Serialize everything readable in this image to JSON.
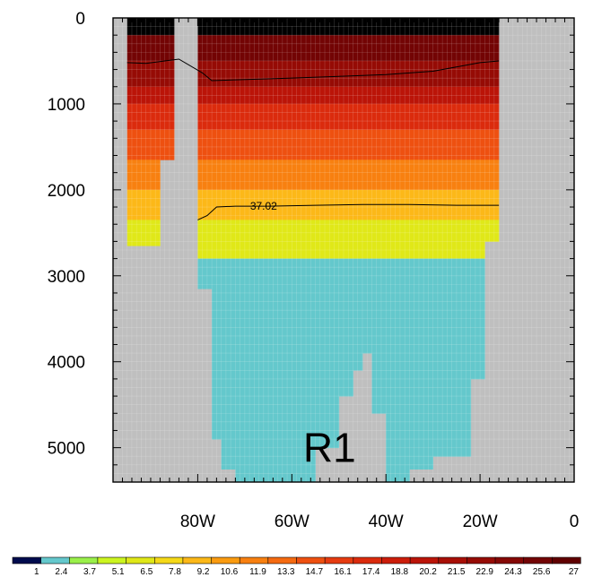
{
  "chart_data": {
    "type": "heatmap",
    "title": "",
    "xlabel": "",
    "ylabel": "",
    "xlim": [
      -98,
      0
    ],
    "ylim": [
      5400,
      0
    ],
    "y_reversed": true,
    "x_ticks": [
      {
        "value": -80,
        "label": "80W"
      },
      {
        "value": -60,
        "label": "60W"
      },
      {
        "value": -40,
        "label": "40W"
      },
      {
        "value": -20,
        "label": "20W"
      },
      {
        "value": 0,
        "label": "0"
      }
    ],
    "y_ticks": [
      {
        "value": 0,
        "label": "0"
      },
      {
        "value": 1000,
        "label": "1000"
      },
      {
        "value": 2000,
        "label": "2000"
      },
      {
        "value": 3000,
        "label": "3000"
      },
      {
        "value": 4000,
        "label": "4000"
      },
      {
        "value": 5000,
        "label": "5000"
      }
    ],
    "land_color": "#bfbfbf",
    "band_edges": [
      0,
      200,
      500,
      800,
      1000,
      1300,
      1650,
      2000,
      2350,
      2800,
      3150,
      5400
    ],
    "band_color_index": [
      20,
      18,
      16,
      14,
      12,
      10,
      8,
      6,
      4,
      1,
      1
    ],
    "ocean_columns": [
      {
        "lon": [
          -95,
          -88
        ],
        "bottom": 2650
      },
      {
        "lon": [
          -88,
          -85
        ],
        "bottom": 1650
      },
      {
        "lon": [
          -80,
          -77
        ],
        "bottom": 3150
      },
      {
        "lon": [
          -77,
          -75
        ],
        "bottom": 4900
      },
      {
        "lon": [
          -75,
          -72
        ],
        "bottom": 5250
      },
      {
        "lon": [
          -72,
          -68
        ],
        "bottom": 5400
      },
      {
        "lon": [
          -68,
          -55
        ],
        "bottom": 5400
      },
      {
        "lon": [
          -55,
          -50
        ],
        "bottom": 5000
      },
      {
        "lon": [
          -50,
          -47
        ],
        "bottom": 4400
      },
      {
        "lon": [
          -47,
          -45
        ],
        "bottom": 4100
      },
      {
        "lon": [
          -45,
          -43
        ],
        "bottom": 3900
      },
      {
        "lon": [
          -43,
          -40
        ],
        "bottom": 4600
      },
      {
        "lon": [
          -40,
          -35
        ],
        "bottom": 5400
      },
      {
        "lon": [
          -35,
          -30
        ],
        "bottom": 5250
      },
      {
        "lon": [
          -30,
          -22
        ],
        "bottom": 5100
      },
      {
        "lon": [
          -22,
          -19
        ],
        "bottom": 4200
      },
      {
        "lon": [
          -19,
          -16
        ],
        "bottom": 2600
      }
    ],
    "levels": [
      "1",
      "2.4",
      "3.7",
      "5.1",
      "6.5",
      "7.8",
      "9.2",
      "10.6",
      "11.9",
      "13.3",
      "14.7",
      "16.1",
      "17.4",
      "18.8",
      "20.2",
      "21.5",
      "22.9",
      "24.3",
      "25.6",
      "27"
    ],
    "colors": [
      "#000b4d",
      "#64c8cc",
      "#9af04a",
      "#ccf520",
      "#e0e818",
      "#f5d918",
      "#fcb818",
      "#fa9b10",
      "#f88010",
      "#f56a10",
      "#ee5010",
      "#e63b10",
      "#db2b0d",
      "#cc1d0a",
      "#bb1408",
      "#a80f06",
      "#960b05",
      "#850805",
      "#730404",
      "#600000"
    ],
    "contours": [
      {
        "label": "",
        "points": [
          [
            -95,
            520
          ],
          [
            -91,
            530
          ],
          [
            -87,
            500
          ],
          [
            -84,
            480
          ],
          [
            -79,
            640
          ],
          [
            -77,
            730
          ],
          [
            -72,
            720
          ],
          [
            -60,
            700
          ],
          [
            -50,
            680
          ],
          [
            -40,
            660
          ],
          [
            -30,
            620
          ],
          [
            -20,
            520
          ],
          [
            -16,
            500
          ]
        ]
      },
      {
        "label": "37.02",
        "label_at": [
          -66,
          2190
        ],
        "points": [
          [
            -80,
            2350
          ],
          [
            -78,
            2300
          ],
          [
            -76,
            2200
          ],
          [
            -72,
            2190
          ],
          [
            -65,
            2190
          ],
          [
            -55,
            2180
          ],
          [
            -45,
            2170
          ],
          [
            -35,
            2170
          ],
          [
            -25,
            2180
          ],
          [
            -16,
            2180
          ]
        ]
      }
    ],
    "annotations": [
      {
        "text": "R1",
        "x": -52,
        "y": 5000
      }
    ]
  }
}
